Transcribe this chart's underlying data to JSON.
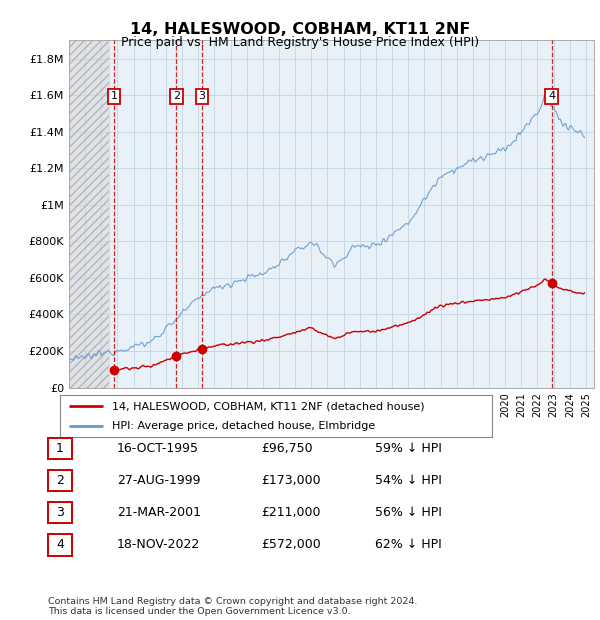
{
  "title": "14, HALESWOOD, COBHAM, KT11 2NF",
  "subtitle": "Price paid vs. HM Land Registry's House Price Index (HPI)",
  "ylabel_values": [
    0,
    200000,
    400000,
    600000,
    800000,
    1000000,
    1200000,
    1400000,
    1600000,
    1800000
  ],
  "ylabel_labels": [
    "£0",
    "£200K",
    "£400K",
    "£600K",
    "£800K",
    "£1M",
    "£1.2M",
    "£1.4M",
    "£1.6M",
    "£1.8M"
  ],
  "xmin": 1993.0,
  "xmax": 2025.5,
  "ymin": 0,
  "ymax": 1900000,
  "hatch_end": 1995.5,
  "sales": [
    {
      "label": "1",
      "date": 1995.79,
      "price": 96750
    },
    {
      "label": "2",
      "date": 1999.65,
      "price": 173000
    },
    {
      "label": "3",
      "date": 2001.22,
      "price": 211000
    },
    {
      "label": "4",
      "date": 2022.88,
      "price": 572000
    }
  ],
  "sale_table": [
    {
      "num": "1",
      "date": "16-OCT-1995",
      "price": "£96,750",
      "hpi": "59% ↓ HPI"
    },
    {
      "num": "2",
      "date": "27-AUG-1999",
      "price": "£173,000",
      "hpi": "54% ↓ HPI"
    },
    {
      "num": "3",
      "date": "21-MAR-2001",
      "price": "£211,000",
      "hpi": "56% ↓ HPI"
    },
    {
      "num": "4",
      "date": "18-NOV-2022",
      "price": "£572,000",
      "hpi": "62% ↓ HPI"
    }
  ],
  "legend_line1": "14, HALESWOOD, COBHAM, KT11 2NF (detached house)",
  "legend_line2": "HPI: Average price, detached house, Elmbridge",
  "footer1": "Contains HM Land Registry data © Crown copyright and database right 2024.",
  "footer2": "This data is licensed under the Open Government Licence v3.0.",
  "red_color": "#cc0000",
  "blue_color": "#6699cc",
  "grid_color": "#c8d8e8",
  "plot_bg": "#e8f0f8"
}
